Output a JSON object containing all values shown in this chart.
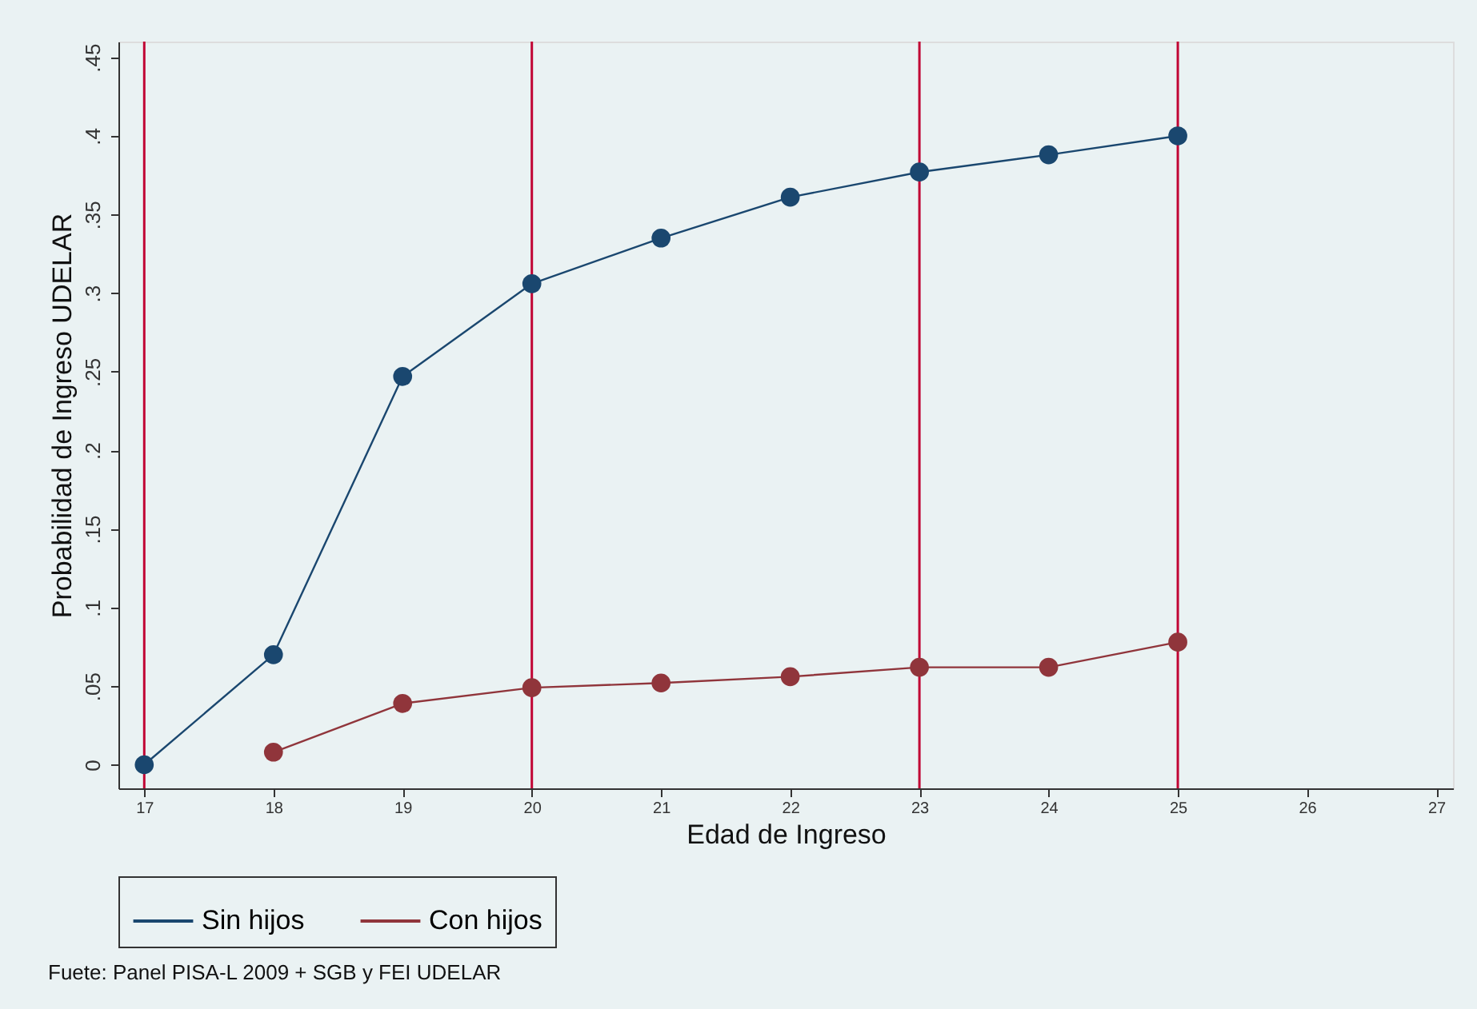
{
  "chart_data": {
    "type": "line",
    "xlabel": "Edad de Ingreso",
    "ylabel": "Probabilidad de Ingreso UDELAR",
    "x": [
      17,
      18,
      19,
      20,
      21,
      22,
      23,
      24,
      25
    ],
    "series": [
      {
        "name": "Sin hijos",
        "color": "#1a476f",
        "values": [
          0,
          0.07,
          0.247,
          0.306,
          0.335,
          0.361,
          0.377,
          0.388,
          0.4
        ]
      },
      {
        "name": "Con hijos",
        "color": "#90353b",
        "values": [
          null,
          0.008,
          0.039,
          0.049,
          0.052,
          0.056,
          0.062,
          0.062,
          0.078
        ]
      }
    ],
    "xlim": [
      16.8,
      27.13
    ],
    "xticks": [
      17,
      18,
      19,
      20,
      21,
      22,
      23,
      24,
      25,
      26,
      27
    ],
    "ylim": [
      -0.015,
      0.46
    ],
    "yticks": [
      {
        "value": 0,
        "label": "0"
      },
      {
        "value": 0.05,
        "label": ".05"
      },
      {
        "value": 0.1,
        "label": ".1"
      },
      {
        "value": 0.15,
        "label": ".15"
      },
      {
        "value": 0.2,
        "label": ".2"
      },
      {
        "value": 0.25,
        "label": ".25"
      },
      {
        "value": 0.3,
        "label": ".3"
      },
      {
        "value": 0.35,
        "label": ".35"
      },
      {
        "value": 0.4,
        "label": ".4"
      },
      {
        "value": 0.45,
        "label": ".45"
      }
    ],
    "ref_lines": [
      {
        "axis": "x",
        "value": 17,
        "color": "#c10534"
      },
      {
        "axis": "x",
        "value": 20,
        "color": "#c10534"
      },
      {
        "axis": "x",
        "value": 23,
        "color": "#c10534"
      },
      {
        "axis": "x",
        "value": 25,
        "color": "#c10534"
      }
    ],
    "annotations": [
      "Fuete: Panel PISA-L 2009 + SGB y FEI UDELAR"
    ],
    "grid": false,
    "legend": "bottom",
    "marker": "circle",
    "line_style": "solid"
  }
}
